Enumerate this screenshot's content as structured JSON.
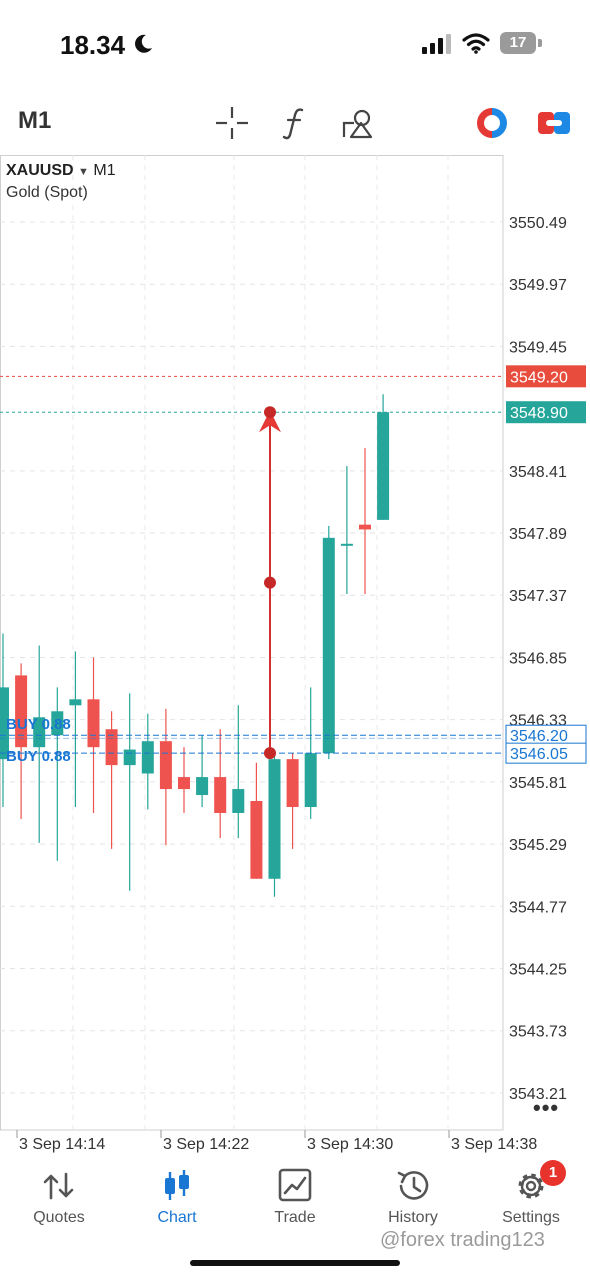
{
  "status_bar": {
    "time": "18.34",
    "battery": "17"
  },
  "toolbar": {
    "timeframe": "M1",
    "icons": [
      "crosshair-icon",
      "function-icon",
      "objects-icon",
      "trade-toggle-icon",
      "one-click-icon"
    ]
  },
  "chart": {
    "symbol": "XAUUSD",
    "timeframe": "M1",
    "description": "Gold (Spot)",
    "price_levels": [
      "3550.49",
      "3549.97",
      "3549.45",
      "3548.41",
      "3547.89",
      "3547.37",
      "3546.85",
      "3546.33",
      "3545.81",
      "3545.29",
      "3544.77",
      "3544.25",
      "3543.73",
      "3543.21"
    ],
    "ask_price": "3549.20",
    "bid_price": "3548.90",
    "position_labels": [
      {
        "text": "BUY 0.88",
        "price": "3546.20"
      },
      {
        "text": "BUY 0.88",
        "price": "3546.05"
      }
    ],
    "time_labels": [
      "3 Sep 14:14",
      "3 Sep 14:22",
      "3 Sep 14:30",
      "3 Sep 14:38"
    ],
    "colors": {
      "bull": "#26a69a",
      "bear": "#ef5350",
      "ask": "#e74c3c",
      "bid": "#26a69a",
      "position": "#1976d2"
    }
  },
  "chart_data": {
    "type": "candlestick",
    "title": "",
    "xlabel": "",
    "ylabel": "",
    "ylim": [
      3542.9,
      3551.05
    ],
    "candles": [
      {
        "o": 3546.0,
        "h": 3547.05,
        "l": 3545.6,
        "c": 3546.6
      },
      {
        "o": 3546.7,
        "h": 3546.8,
        "l": 3545.5,
        "c": 3546.1
      },
      {
        "o": 3546.1,
        "h": 3546.95,
        "l": 3545.3,
        "c": 3546.35
      },
      {
        "o": 3546.2,
        "h": 3546.6,
        "l": 3545.15,
        "c": 3546.4
      },
      {
        "o": 3546.45,
        "h": 3546.9,
        "l": 3545.6,
        "c": 3546.5
      },
      {
        "o": 3546.5,
        "h": 3546.85,
        "l": 3545.55,
        "c": 3546.1
      },
      {
        "o": 3546.25,
        "h": 3546.4,
        "l": 3545.25,
        "c": 3545.95
      },
      {
        "o": 3545.95,
        "h": 3546.55,
        "l": 3544.9,
        "c": 3546.08
      },
      {
        "o": 3545.88,
        "h": 3546.38,
        "l": 3545.58,
        "c": 3546.15
      },
      {
        "o": 3546.15,
        "h": 3546.42,
        "l": 3545.28,
        "c": 3545.75
      },
      {
        "o": 3545.85,
        "h": 3546.1,
        "l": 3545.55,
        "c": 3545.75
      },
      {
        "o": 3545.7,
        "h": 3546.2,
        "l": 3545.6,
        "c": 3545.85
      },
      {
        "o": 3545.85,
        "h": 3546.25,
        "l": 3545.34,
        "c": 3545.55
      },
      {
        "o": 3545.55,
        "h": 3546.45,
        "l": 3545.34,
        "c": 3545.75
      },
      {
        "o": 3545.65,
        "h": 3545.97,
        "l": 3545.0,
        "c": 3545.0
      },
      {
        "o": 3545.0,
        "h": 3546.05,
        "l": 3544.85,
        "c": 3546.0
      },
      {
        "o": 3546.0,
        "h": 3546.05,
        "l": 3545.25,
        "c": 3545.6
      },
      {
        "o": 3545.6,
        "h": 3546.6,
        "l": 3545.5,
        "c": 3546.05
      },
      {
        "o": 3546.05,
        "h": 3547.95,
        "l": 3546.0,
        "c": 3547.85
      },
      {
        "o": 3547.8,
        "h": 3548.45,
        "l": 3547.38,
        "c": 3547.8
      },
      {
        "o": 3547.96,
        "h": 3548.6,
        "l": 3547.38,
        "c": 3547.92
      },
      {
        "o": 3548.0,
        "h": 3549.05,
        "l": 3548.0,
        "c": 3548.9
      }
    ],
    "ask": 3549.2,
    "bid": 3548.9,
    "positions": [
      3546.2,
      3546.05
    ],
    "measure_line": {
      "from": 3546.05,
      "to": 3548.9
    }
  },
  "nav": {
    "items": [
      {
        "label": "Quotes",
        "icon": "quotes-icon"
      },
      {
        "label": "Chart",
        "icon": "chart-icon"
      },
      {
        "label": "Trade",
        "icon": "trade-icon"
      },
      {
        "label": "History",
        "icon": "history-icon"
      },
      {
        "label": "Settings",
        "icon": "settings-icon"
      }
    ],
    "settings_badge": "1"
  },
  "watermark": "@forex trading123"
}
